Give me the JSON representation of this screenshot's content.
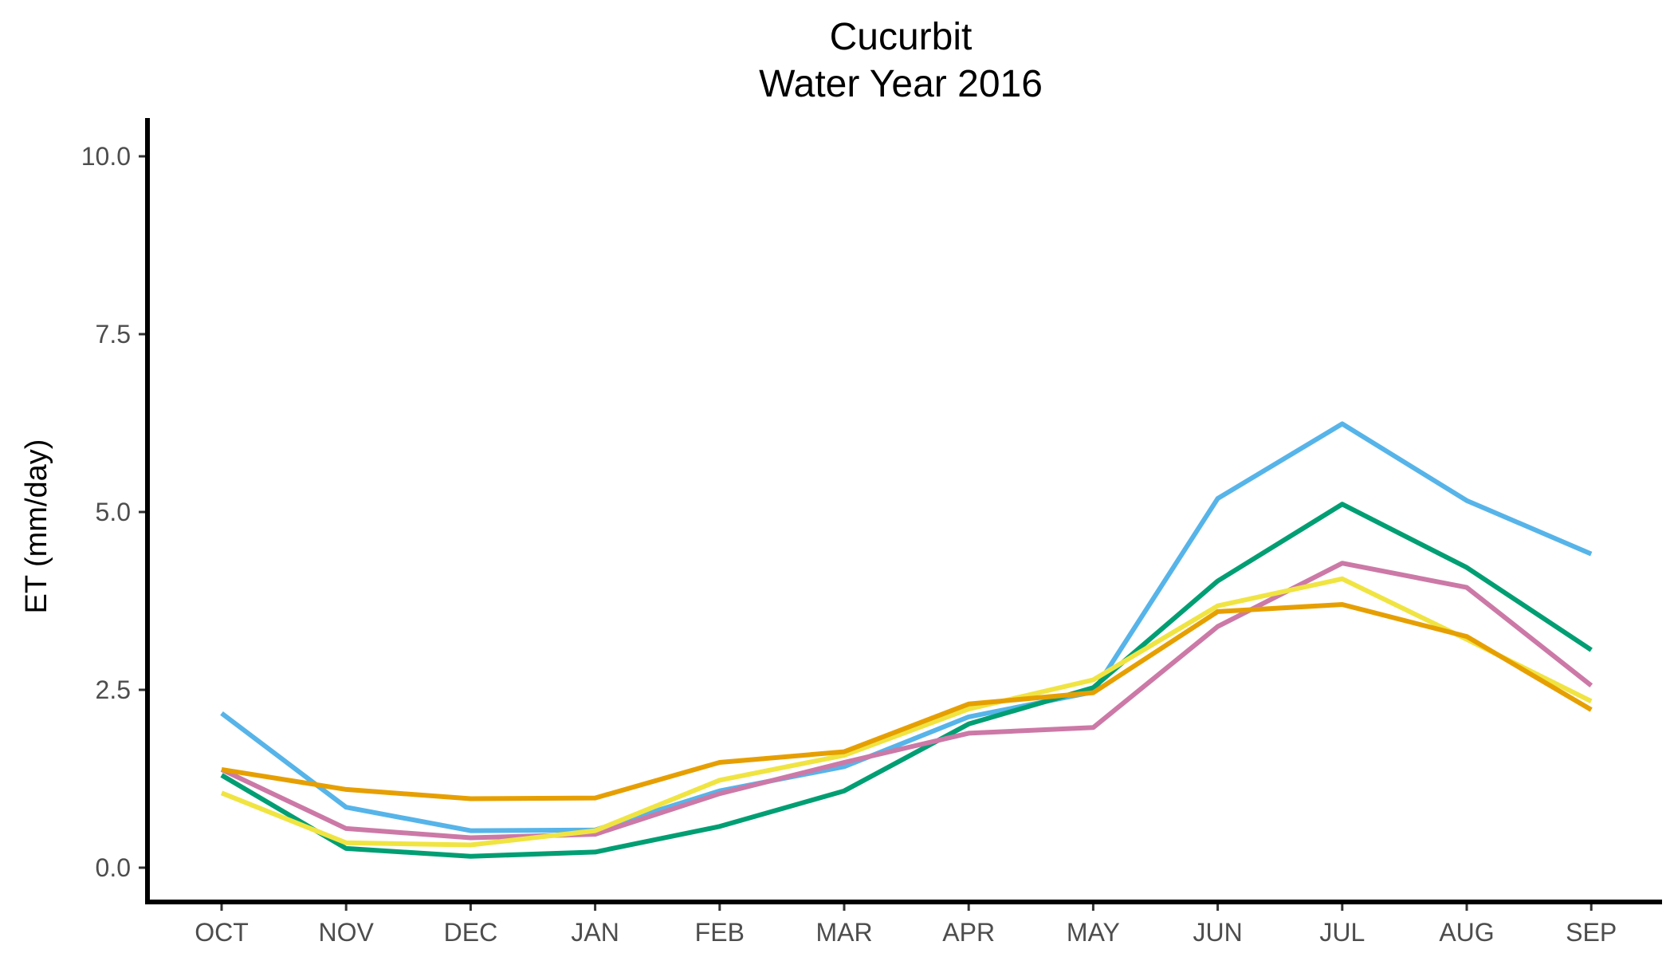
{
  "chart_data": {
    "type": "line",
    "title": "Cucurbit",
    "subtitle": "Water Year 2016",
    "xlabel": "",
    "ylabel": "ET (mm/day)",
    "categories": [
      "OCT",
      "NOV",
      "DEC",
      "JAN",
      "FEB",
      "MAR",
      "APR",
      "MAY",
      "JUN",
      "JUL",
      "AUG",
      "SEP"
    ],
    "ylim": [
      0,
      10
    ],
    "yticks": [
      "0.0",
      "2.5",
      "5.0",
      "7.5",
      "10.0"
    ],
    "ytick_values": [
      0,
      2.5,
      5,
      7.5,
      10
    ],
    "grid": false,
    "legend": "none",
    "series": [
      {
        "color": "#56B4E9",
        "values": [
          2.17,
          0.85,
          0.52,
          0.53,
          1.08,
          1.42,
          2.12,
          2.47,
          5.19,
          6.24,
          5.16,
          4.41
        ]
      },
      {
        "color": "#009E73",
        "values": [
          1.3,
          0.27,
          0.16,
          0.22,
          0.58,
          1.08,
          2.02,
          2.53,
          4.03,
          5.11,
          4.22,
          3.06
        ]
      },
      {
        "color": "#CC79A7",
        "values": [
          1.38,
          0.55,
          0.42,
          0.47,
          1.04,
          1.48,
          1.89,
          1.97,
          3.39,
          4.28,
          3.94,
          2.56
        ]
      },
      {
        "color": "#F0E442",
        "values": [
          1.05,
          0.35,
          0.32,
          0.52,
          1.23,
          1.58,
          2.23,
          2.64,
          3.68,
          4.06,
          3.21,
          2.34
        ]
      },
      {
        "color": "#E69F00",
        "values": [
          1.38,
          1.1,
          0.97,
          0.98,
          1.48,
          1.63,
          2.3,
          2.46,
          3.6,
          3.7,
          3.25,
          2.22
        ]
      }
    ]
  }
}
